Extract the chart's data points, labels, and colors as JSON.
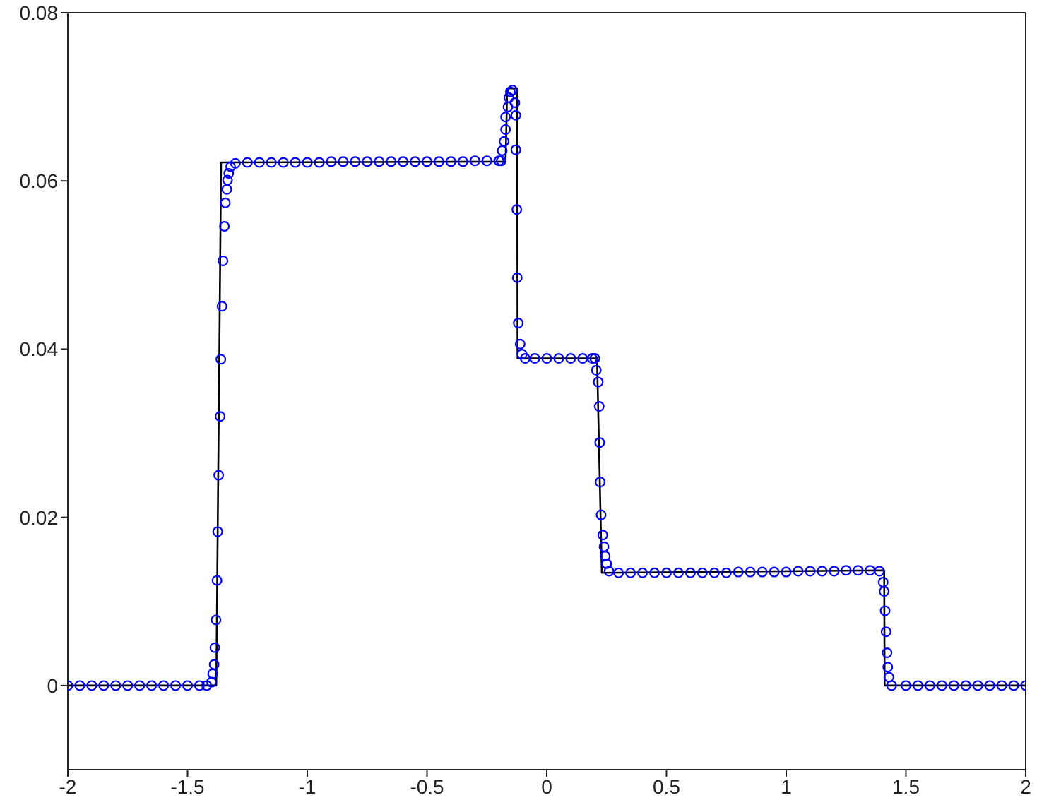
{
  "chart_data": {
    "type": "scatter",
    "xlim": [
      -2,
      2
    ],
    "ylim": [
      -0.01,
      0.08
    ],
    "xticks": [
      -2,
      -1.5,
      -1,
      -0.5,
      0,
      0.5,
      1,
      1.5,
      2
    ],
    "yticks": [
      0,
      0.02,
      0.04,
      0.06,
      0.08
    ],
    "grid": false,
    "series": [
      {
        "color": "#0000ff",
        "marker": "circle",
        "x": [
          -2,
          -1.95,
          -1.9,
          -1.85,
          -1.8,
          -1.75,
          -1.7,
          -1.65,
          -1.6,
          -1.55,
          -1.5,
          -1.45,
          -1.42,
          -1.4,
          -1.395,
          -1.389,
          -1.386,
          -1.381,
          -1.377,
          -1.374,
          -1.37,
          -1.364,
          -1.361,
          -1.356,
          -1.352,
          -1.346,
          -1.342,
          -1.336,
          -1.333,
          -1.328,
          -1.32,
          -1.3,
          -1.25,
          -1.2,
          -1.15,
          -1.1,
          -1.05,
          -1,
          -0.95,
          -0.9,
          -0.85,
          -0.8,
          -0.75,
          -0.7,
          -0.65,
          -0.6,
          -0.55,
          -0.5,
          -0.45,
          -0.4,
          -0.35,
          -0.3,
          -0.25,
          -0.2,
          -0.19,
          -0.186,
          -0.178,
          -0.172,
          -0.172,
          -0.162,
          -0.158,
          -0.152,
          -0.143,
          -0.133,
          -0.129,
          -0.129,
          -0.125,
          -0.123,
          -0.119,
          -0.111,
          -0.103,
          -0.09,
          -0.05,
          0,
          0.05,
          0.1,
          0.15,
          0.19,
          0.201,
          0.207,
          0.215,
          0.219,
          0.221,
          0.223,
          0.227,
          0.234,
          0.239,
          0.244,
          0.25,
          0.26,
          0.3,
          0.35,
          0.4,
          0.45,
          0.5,
          0.55,
          0.6,
          0.65,
          0.7,
          0.75,
          0.8,
          0.85,
          0.9,
          0.95,
          1,
          1.05,
          1.1,
          1.15,
          1.2,
          1.25,
          1.3,
          1.35,
          1.389,
          1.405,
          1.409,
          1.413,
          1.417,
          1.421,
          1.424,
          1.429,
          1.44,
          1.5,
          1.55,
          1.6,
          1.65,
          1.7,
          1.75,
          1.8,
          1.85,
          1.9,
          1.95,
          2
        ],
        "values": [
          0,
          0,
          0,
          0,
          0,
          0,
          0,
          0,
          0,
          0,
          0,
          0,
          0,
          0.0004,
          0.0014,
          0.0025,
          0.0045,
          0.0078,
          0.0125,
          0.0183,
          0.025,
          0.032,
          0.0388,
          0.0451,
          0.0505,
          0.0546,
          0.0574,
          0.059,
          0.0601,
          0.0609,
          0.0617,
          0.0621,
          0.0622,
          0.0622,
          0.0622,
          0.0622,
          0.0622,
          0.0622,
          0.0622,
          0.0623,
          0.0623,
          0.0623,
          0.0623,
          0.0623,
          0.0623,
          0.0623,
          0.0623,
          0.0623,
          0.0623,
          0.0623,
          0.0623,
          0.0624,
          0.0624,
          0.0624,
          0.0624,
          0.0636,
          0.0647,
          0.0661,
          0.0676,
          0.0688,
          0.0699,
          0.0706,
          0.0708,
          0.0693,
          0.0678,
          0.0637,
          0.0566,
          0.0485,
          0.0431,
          0.0406,
          0.0394,
          0.0389,
          0.0389,
          0.0389,
          0.0389,
          0.0389,
          0.0389,
          0.0389,
          0.0389,
          0.0375,
          0.0361,
          0.0332,
          0.0289,
          0.0242,
          0.0203,
          0.0179,
          0.0165,
          0.0154,
          0.0145,
          0.0136,
          0.0134,
          0.0134,
          0.0134,
          0.0134,
          0.0134,
          0.0134,
          0.0134,
          0.0134,
          0.0134,
          0.0134,
          0.0135,
          0.0135,
          0.0135,
          0.0135,
          0.0135,
          0.0136,
          0.0136,
          0.0136,
          0.0136,
          0.0137,
          0.0137,
          0.0137,
          0.0136,
          0.0123,
          0.0112,
          0.0089,
          0.0064,
          0.0039,
          0.0022,
          0.001,
          0,
          0,
          0,
          0,
          0,
          0,
          0,
          0,
          0,
          0,
          0,
          0
        ]
      },
      {
        "type": "line",
        "color": "#000000",
        "marker": "none",
        "line_style": "solid",
        "x": [
          -2,
          -1.38,
          -1.36,
          -0.172,
          -0.165,
          -0.124,
          -0.122,
          0.21,
          0.23,
          1.409,
          1.411,
          2
        ],
        "values": [
          0,
          0,
          0.0622,
          0.0623,
          0.071,
          0.071,
          0.0389,
          0.0389,
          0.0134,
          0.0137,
          0,
          0
        ]
      }
    ]
  }
}
